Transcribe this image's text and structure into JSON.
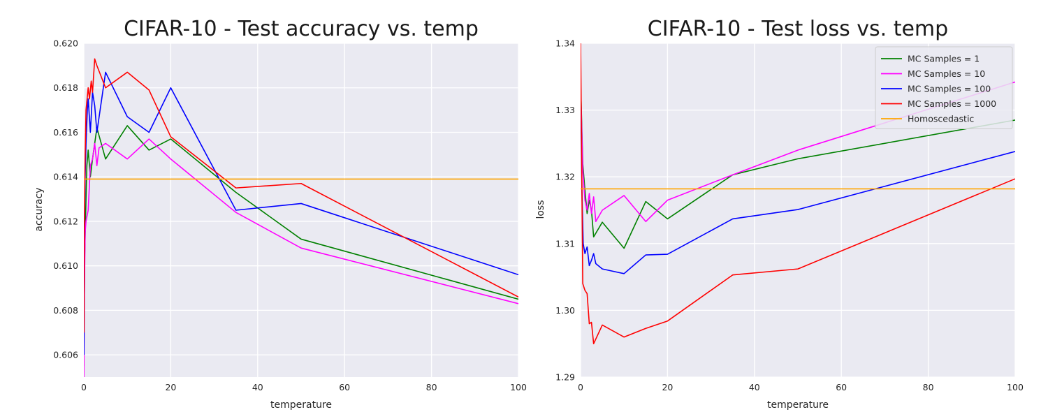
{
  "chart_data": [
    {
      "type": "line",
      "title": "CIFAR-10 - Test accuracy vs. temp",
      "xlabel": "temperature",
      "ylabel": "accuracy",
      "xlim": [
        0,
        100
      ],
      "ylim": [
        0.605,
        0.62
      ],
      "xticks": [
        "0",
        "20",
        "40",
        "60",
        "80",
        "100"
      ],
      "yticks": [
        "0.606",
        "0.608",
        "0.610",
        "0.612",
        "0.614",
        "0.616",
        "0.618",
        "0.620"
      ],
      "grid": true,
      "series": [
        {
          "color": "#008000",
          "points": [
            [
              0.01,
              0.6055
            ],
            [
              0.1,
              0.6085
            ],
            [
              0.2,
              0.6105
            ],
            [
              0.5,
              0.613
            ],
            [
              0.7,
              0.6145
            ],
            [
              1,
              0.6152
            ],
            [
              1.5,
              0.614
            ],
            [
              2,
              0.6148
            ],
            [
              2.5,
              0.6155
            ],
            [
              3,
              0.6162
            ],
            [
              5,
              0.6148
            ],
            [
              10,
              0.6163
            ],
            [
              15,
              0.6152
            ],
            [
              20,
              0.6157
            ],
            [
              35,
              0.6133
            ],
            [
              50,
              0.6112
            ],
            [
              100,
              0.6085
            ]
          ]
        },
        {
          "color": "#ff00ff",
          "points": [
            [
              0.01,
              0.605
            ],
            [
              0.1,
              0.6085
            ],
            [
              0.3,
              0.6115
            ],
            [
              0.5,
              0.612
            ],
            [
              1,
              0.6125
            ],
            [
              1.5,
              0.6145
            ],
            [
              2,
              0.6148
            ],
            [
              2.5,
              0.6155
            ],
            [
              3,
              0.6145
            ],
            [
              3.5,
              0.6153
            ],
            [
              5,
              0.6155
            ],
            [
              10,
              0.6148
            ],
            [
              15,
              0.6157
            ],
            [
              20,
              0.6148
            ],
            [
              35,
              0.6124
            ],
            [
              50,
              0.6108
            ],
            [
              100,
              0.6083
            ]
          ]
        },
        {
          "color": "#0000ff",
          "points": [
            [
              0.01,
              0.606
            ],
            [
              0.1,
              0.611
            ],
            [
              0.3,
              0.614
            ],
            [
              0.5,
              0.6155
            ],
            [
              0.8,
              0.617
            ],
            [
              1,
              0.6175
            ],
            [
              1.5,
              0.616
            ],
            [
              2,
              0.6178
            ],
            [
              2.5,
              0.6172
            ],
            [
              3,
              0.616
            ],
            [
              5,
              0.6187
            ],
            [
              10,
              0.6167
            ],
            [
              15,
              0.616
            ],
            [
              20,
              0.618
            ],
            [
              35,
              0.6125
            ],
            [
              50,
              0.6128
            ],
            [
              100,
              0.6096
            ]
          ]
        },
        {
          "color": "#ff0000",
          "points": [
            [
              0.01,
              0.607
            ],
            [
              0.1,
              0.6115
            ],
            [
              0.3,
              0.615
            ],
            [
              0.5,
              0.617
            ],
            [
              1,
              0.618
            ],
            [
              1.3,
              0.6175
            ],
            [
              1.7,
              0.6183
            ],
            [
              2,
              0.6178
            ],
            [
              2.5,
              0.6193
            ],
            [
              3,
              0.619
            ],
            [
              5,
              0.618
            ],
            [
              10,
              0.6187
            ],
            [
              15,
              0.6179
            ],
            [
              20,
              0.6158
            ],
            [
              35,
              0.6135
            ],
            [
              50,
              0.6137
            ],
            [
              100,
              0.6086
            ]
          ]
        },
        {
          "color": "#ffa500",
          "points": [
            [
              0,
              0.6139
            ],
            [
              100,
              0.6139
            ]
          ]
        }
      ]
    },
    {
      "type": "line",
      "title": "CIFAR-10 - Test loss vs. temp",
      "xlabel": "temperature",
      "ylabel": "loss",
      "xlim": [
        0,
        100
      ],
      "ylim": [
        1.29,
        1.34
      ],
      "xticks": [
        "0",
        "20",
        "40",
        "60",
        "80",
        "100"
      ],
      "yticks": [
        "1.29",
        "1.30",
        "1.31",
        "1.32",
        "1.33",
        "1.34"
      ],
      "grid": true,
      "legend_position": "upper-right",
      "series": [
        {
          "name": "MC Samples = 1",
          "color": "#008000",
          "points": [
            [
              0.01,
              1.334
            ],
            [
              0.5,
              1.322
            ],
            [
              1,
              1.318
            ],
            [
              1.5,
              1.3145
            ],
            [
              2,
              1.3165
            ],
            [
              2.5,
              1.315
            ],
            [
              3,
              1.311
            ],
            [
              5,
              1.3132
            ],
            [
              10,
              1.3093
            ],
            [
              15,
              1.3163
            ],
            [
              20,
              1.3137
            ],
            [
              35,
              1.3203
            ],
            [
              50,
              1.3227
            ],
            [
              100,
              1.3285
            ]
          ]
        },
        {
          "name": "MC Samples = 10",
          "color": "#ff00ff",
          "points": [
            [
              0.01,
              1.3335
            ],
            [
              0.5,
              1.321
            ],
            [
              1,
              1.3165
            ],
            [
              1.5,
              1.315
            ],
            [
              2,
              1.3175
            ],
            [
              2.5,
              1.3145
            ],
            [
              3,
              1.317
            ],
            [
              3.5,
              1.3133
            ],
            [
              5,
              1.315
            ],
            [
              10,
              1.3172
            ],
            [
              15,
              1.3133
            ],
            [
              20,
              1.3165
            ],
            [
              35,
              1.3203
            ],
            [
              50,
              1.324
            ],
            [
              100,
              1.3342
            ]
          ]
        },
        {
          "name": "MC Samples = 100",
          "color": "#0000ff",
          "points": [
            [
              0.01,
              1.333
            ],
            [
              0.3,
              1.318
            ],
            [
              0.6,
              1.31
            ],
            [
              1,
              1.3085
            ],
            [
              1.5,
              1.3095
            ],
            [
              2,
              1.3067
            ],
            [
              2.5,
              1.3075
            ],
            [
              3,
              1.3085
            ],
            [
              3.5,
              1.307
            ],
            [
              5,
              1.3062
            ],
            [
              10,
              1.3055
            ],
            [
              15,
              1.3083
            ],
            [
              20,
              1.3084
            ],
            [
              35,
              1.3137
            ],
            [
              50,
              1.3151
            ],
            [
              100,
              1.3238
            ]
          ]
        },
        {
          "name": "MC Samples = 1000",
          "color": "#ff0000",
          "points": [
            [
              0.01,
              1.34
            ],
            [
              0.5,
              1.304
            ],
            [
              1,
              1.303
            ],
            [
              1.5,
              1.3025
            ],
            [
              2,
              1.298
            ],
            [
              2.5,
              1.2982
            ],
            [
              3,
              1.295
            ],
            [
              5,
              1.2978
            ],
            [
              10,
              1.296
            ],
            [
              15,
              1.2973
            ],
            [
              20,
              1.2984
            ],
            [
              35,
              1.3053
            ],
            [
              50,
              1.3062
            ],
            [
              100,
              1.3197
            ]
          ]
        },
        {
          "name": "Homoscedastic",
          "color": "#ffa500",
          "points": [
            [
              0,
              1.3182
            ],
            [
              100,
              1.3182
            ]
          ]
        }
      ]
    }
  ]
}
